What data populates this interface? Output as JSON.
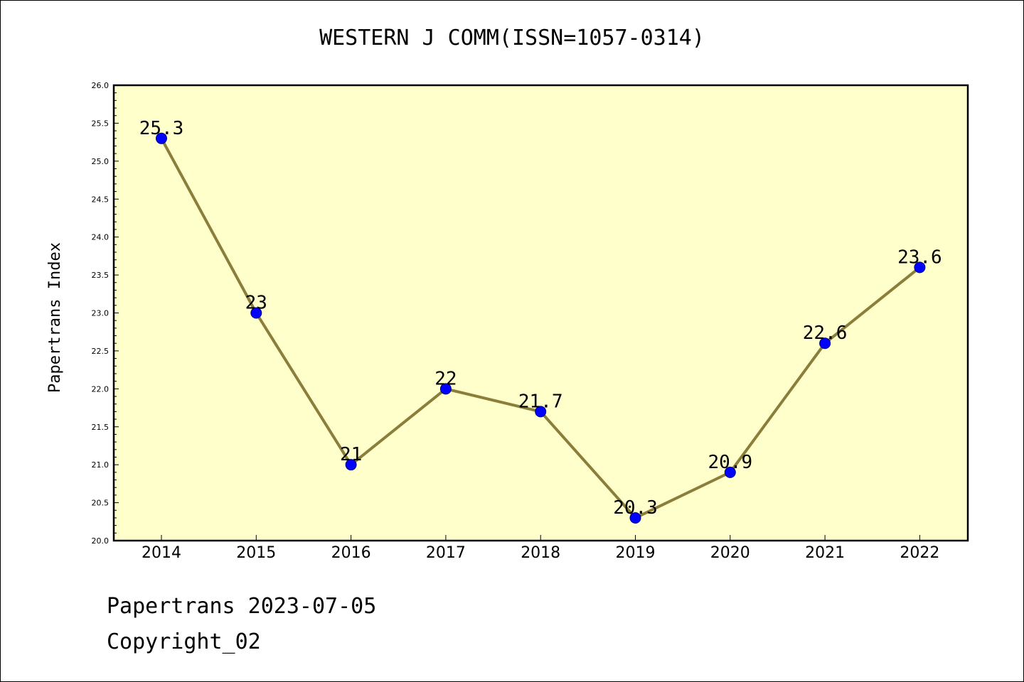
{
  "chart_data": {
    "type": "line",
    "title": "WESTERN J COMM(ISSN=1057-0314)",
    "xlabel": "",
    "ylabel": "Papertrans Index",
    "categories": [
      "2014",
      "2015",
      "2016",
      "2017",
      "2018",
      "2019",
      "2020",
      "2021",
      "2022"
    ],
    "values": [
      25.3,
      23,
      21,
      22,
      21.7,
      20.3,
      20.9,
      22.6,
      23.6
    ],
    "data_labels": [
      "25.3",
      "23",
      "21",
      "22",
      "21.7",
      "20.3",
      "20.9",
      "22.6",
      "23.6"
    ],
    "ylim": [
      20.0,
      26.0
    ],
    "y_ticks": [
      "20.0",
      "20.5",
      "21.0",
      "21.5",
      "22.0",
      "22.5",
      "23.0",
      "23.5",
      "24.0",
      "24.5",
      "25.0",
      "25.5",
      "26.0"
    ],
    "grid": false,
    "legend": "none",
    "colors": {
      "plot_background": "#ffffcc",
      "line": "#8b7d3a",
      "marker": "#0000ff",
      "marker_edge": "#000080"
    }
  },
  "footer": {
    "date_line": "Papertrans 2023-07-05",
    "copyright_line": "Copyright_02"
  }
}
